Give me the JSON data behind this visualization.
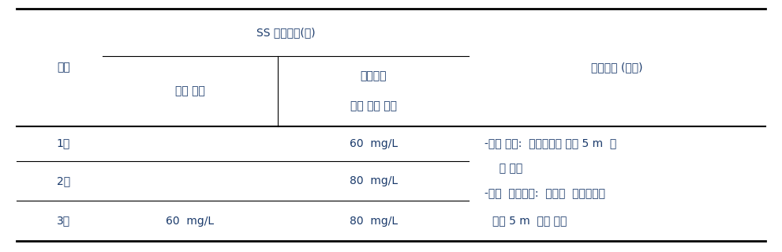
{
  "title": "SS 관리기준(안)",
  "col1_header": "구분",
  "col2_header": "준설 구역",
  "col3_header_line1": "매립구역",
  "col3_header_line2": "여수 방류 구간",
  "col4_header": "측정지점 (공통)",
  "rows": [
    {
      "label": "1안",
      "col2": "",
      "col3": "60  mg/L",
      "col4_line1": "-준설 구역:  오탁방지막 바깥 5 m  이",
      "col4_line2": "  내 지점"
    },
    {
      "label": "2안",
      "col2": "",
      "col3": "80  mg/L",
      "col4_line1": "-여수  방류구간:  여수토  오탁방지막",
      "col4_line2": ""
    },
    {
      "label": "3안",
      "col2": "60  mg/L",
      "col3": "80  mg/L",
      "col4_line1": "바깥 5 m  이내 지점",
      "col4_line2": ""
    }
  ],
  "bg_color": "#ffffff",
  "text_color": "#1a3a6b",
  "line_color": "#000000",
  "font_size": 10
}
